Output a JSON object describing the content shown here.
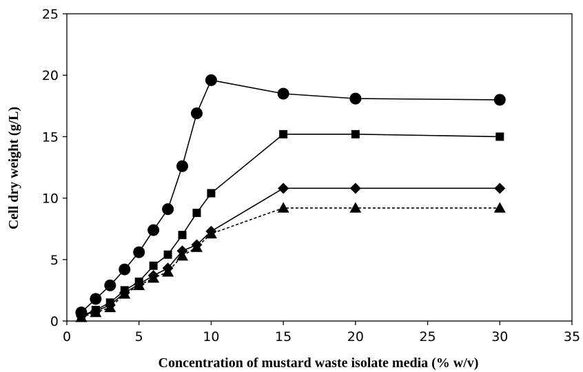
{
  "chart_data": {
    "type": "line",
    "title": "",
    "xlabel": "Concentration of mustard waste isolate media (% w/v)",
    "ylabel": "Cell dry weight (g/L)",
    "xlim": [
      0,
      35
    ],
    "ylim": [
      0,
      25
    ],
    "xticks": [
      0,
      5,
      10,
      15,
      20,
      25,
      30,
      35
    ],
    "yticks": [
      0,
      5,
      10,
      15,
      20,
      25
    ],
    "grid": false,
    "legend": "none",
    "series": [
      {
        "marker": "circle",
        "line_style": "solid",
        "color": "#000000",
        "x": [
          1,
          2,
          3,
          4,
          5,
          6,
          7,
          8,
          9,
          10,
          15,
          20,
          30
        ],
        "y": [
          0.7,
          1.8,
          2.9,
          4.2,
          5.6,
          7.4,
          9.1,
          12.6,
          16.9,
          19.6,
          18.5,
          18.1,
          18.0
        ]
      },
      {
        "marker": "square",
        "line_style": "solid",
        "color": "#000000",
        "x": [
          1,
          2,
          3,
          4,
          5,
          6,
          7,
          8,
          9,
          10,
          15,
          20,
          30
        ],
        "y": [
          0.4,
          0.9,
          1.5,
          2.5,
          3.2,
          4.5,
          5.4,
          7.0,
          8.8,
          10.4,
          15.2,
          15.2,
          15.0
        ]
      },
      {
        "marker": "diamond",
        "line_style": "solid",
        "color": "#000000",
        "x": [
          1,
          2,
          3,
          4,
          5,
          6,
          7,
          8,
          9,
          10,
          15,
          20,
          30
        ],
        "y": [
          0.4,
          0.8,
          1.3,
          2.3,
          3.0,
          3.7,
          4.3,
          5.7,
          6.2,
          7.3,
          10.8,
          10.8,
          10.8
        ]
      },
      {
        "marker": "triangle",
        "line_style": "dashed",
        "color": "#000000",
        "x": [
          1,
          2,
          3,
          4,
          5,
          6,
          7,
          8,
          9,
          10,
          15,
          20,
          30
        ],
        "y": [
          0.3,
          0.7,
          1.1,
          2.2,
          2.9,
          3.5,
          4.0,
          5.3,
          6.0,
          7.1,
          9.2,
          9.2,
          9.2
        ]
      }
    ]
  }
}
